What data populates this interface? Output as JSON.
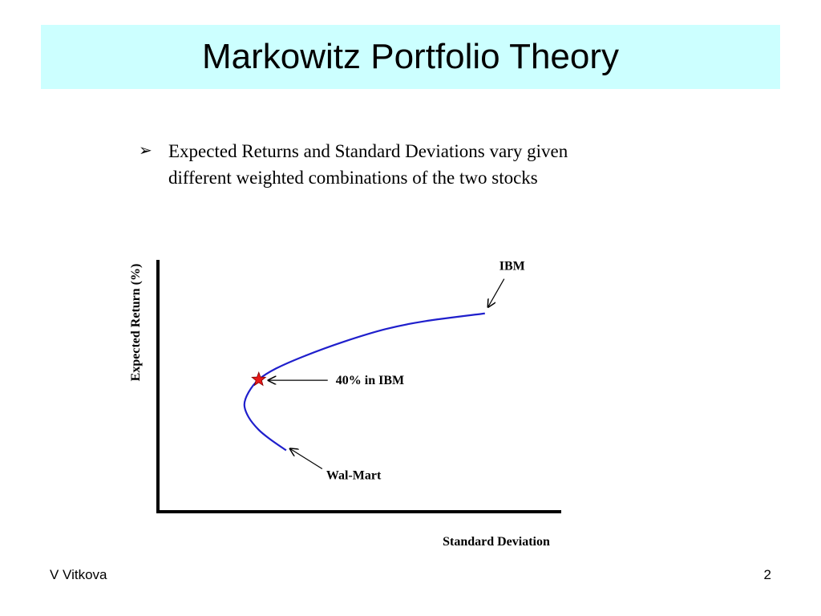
{
  "slide": {
    "title": "Markowitz Portfolio Theory",
    "bullet_marker": "➢",
    "bullet_lines": [
      "Expected Returns and Standard Deviations vary given",
      "different weighted combinations of the two stocks"
    ],
    "footer_author": "V Vitkova",
    "page_number": "2"
  },
  "chart_data": {
    "type": "line",
    "title": "",
    "xlabel": "Standard Deviation",
    "ylabel": "Expected Return (%)",
    "axis_ticks": false,
    "grid": false,
    "line_color": "#1f1fcc",
    "marker_color": "#e81919",
    "series": [
      {
        "name": "",
        "x": [
          8.9,
          7.8,
          7.0,
          6.3,
          6.0,
          6.3,
          7.0,
          8.2,
          10.2,
          12.9,
          15.8,
          18.5,
          22.7
        ],
        "y": [
          3.9,
          4.6,
          5.2,
          6.0,
          6.8,
          7.6,
          8.4,
          9.1,
          9.9,
          10.8,
          11.6,
          12.1,
          12.6
        ]
      }
    ],
    "annotations": [
      {
        "label": "IBM",
        "x": 22.7,
        "y": 12.6,
        "marker": "none"
      },
      {
        "label": "40% in IBM",
        "x": 7.0,
        "y": 8.4,
        "marker": "star"
      },
      {
        "label": "Wal-Mart",
        "x": 8.9,
        "y": 3.9,
        "marker": "none"
      }
    ],
    "xlim": [
      0,
      28
    ],
    "ylim": [
      0,
      16
    ]
  }
}
